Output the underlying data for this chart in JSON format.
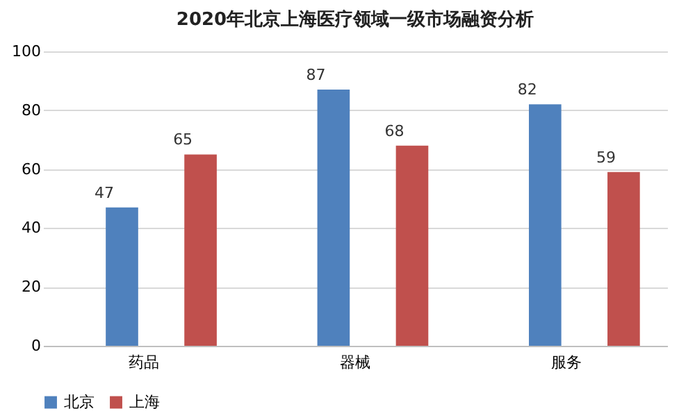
{
  "chart_data": {
    "type": "bar",
    "title": "2020年北京上海医疗领域一级市场融资分析",
    "categories": [
      "药品",
      "器械",
      "服务"
    ],
    "series": [
      {
        "name": "北京",
        "color": "#4f81bd",
        "values": [
          47,
          87,
          82
        ]
      },
      {
        "name": "上海",
        "color": "#c0504d",
        "values": [
          65,
          68,
          59
        ]
      }
    ],
    "ylim": [
      0,
      100
    ],
    "yticks": [
      0,
      20,
      40,
      60,
      80,
      100
    ],
    "grid": "y",
    "legend": "bottom",
    "data_labels": true
  }
}
